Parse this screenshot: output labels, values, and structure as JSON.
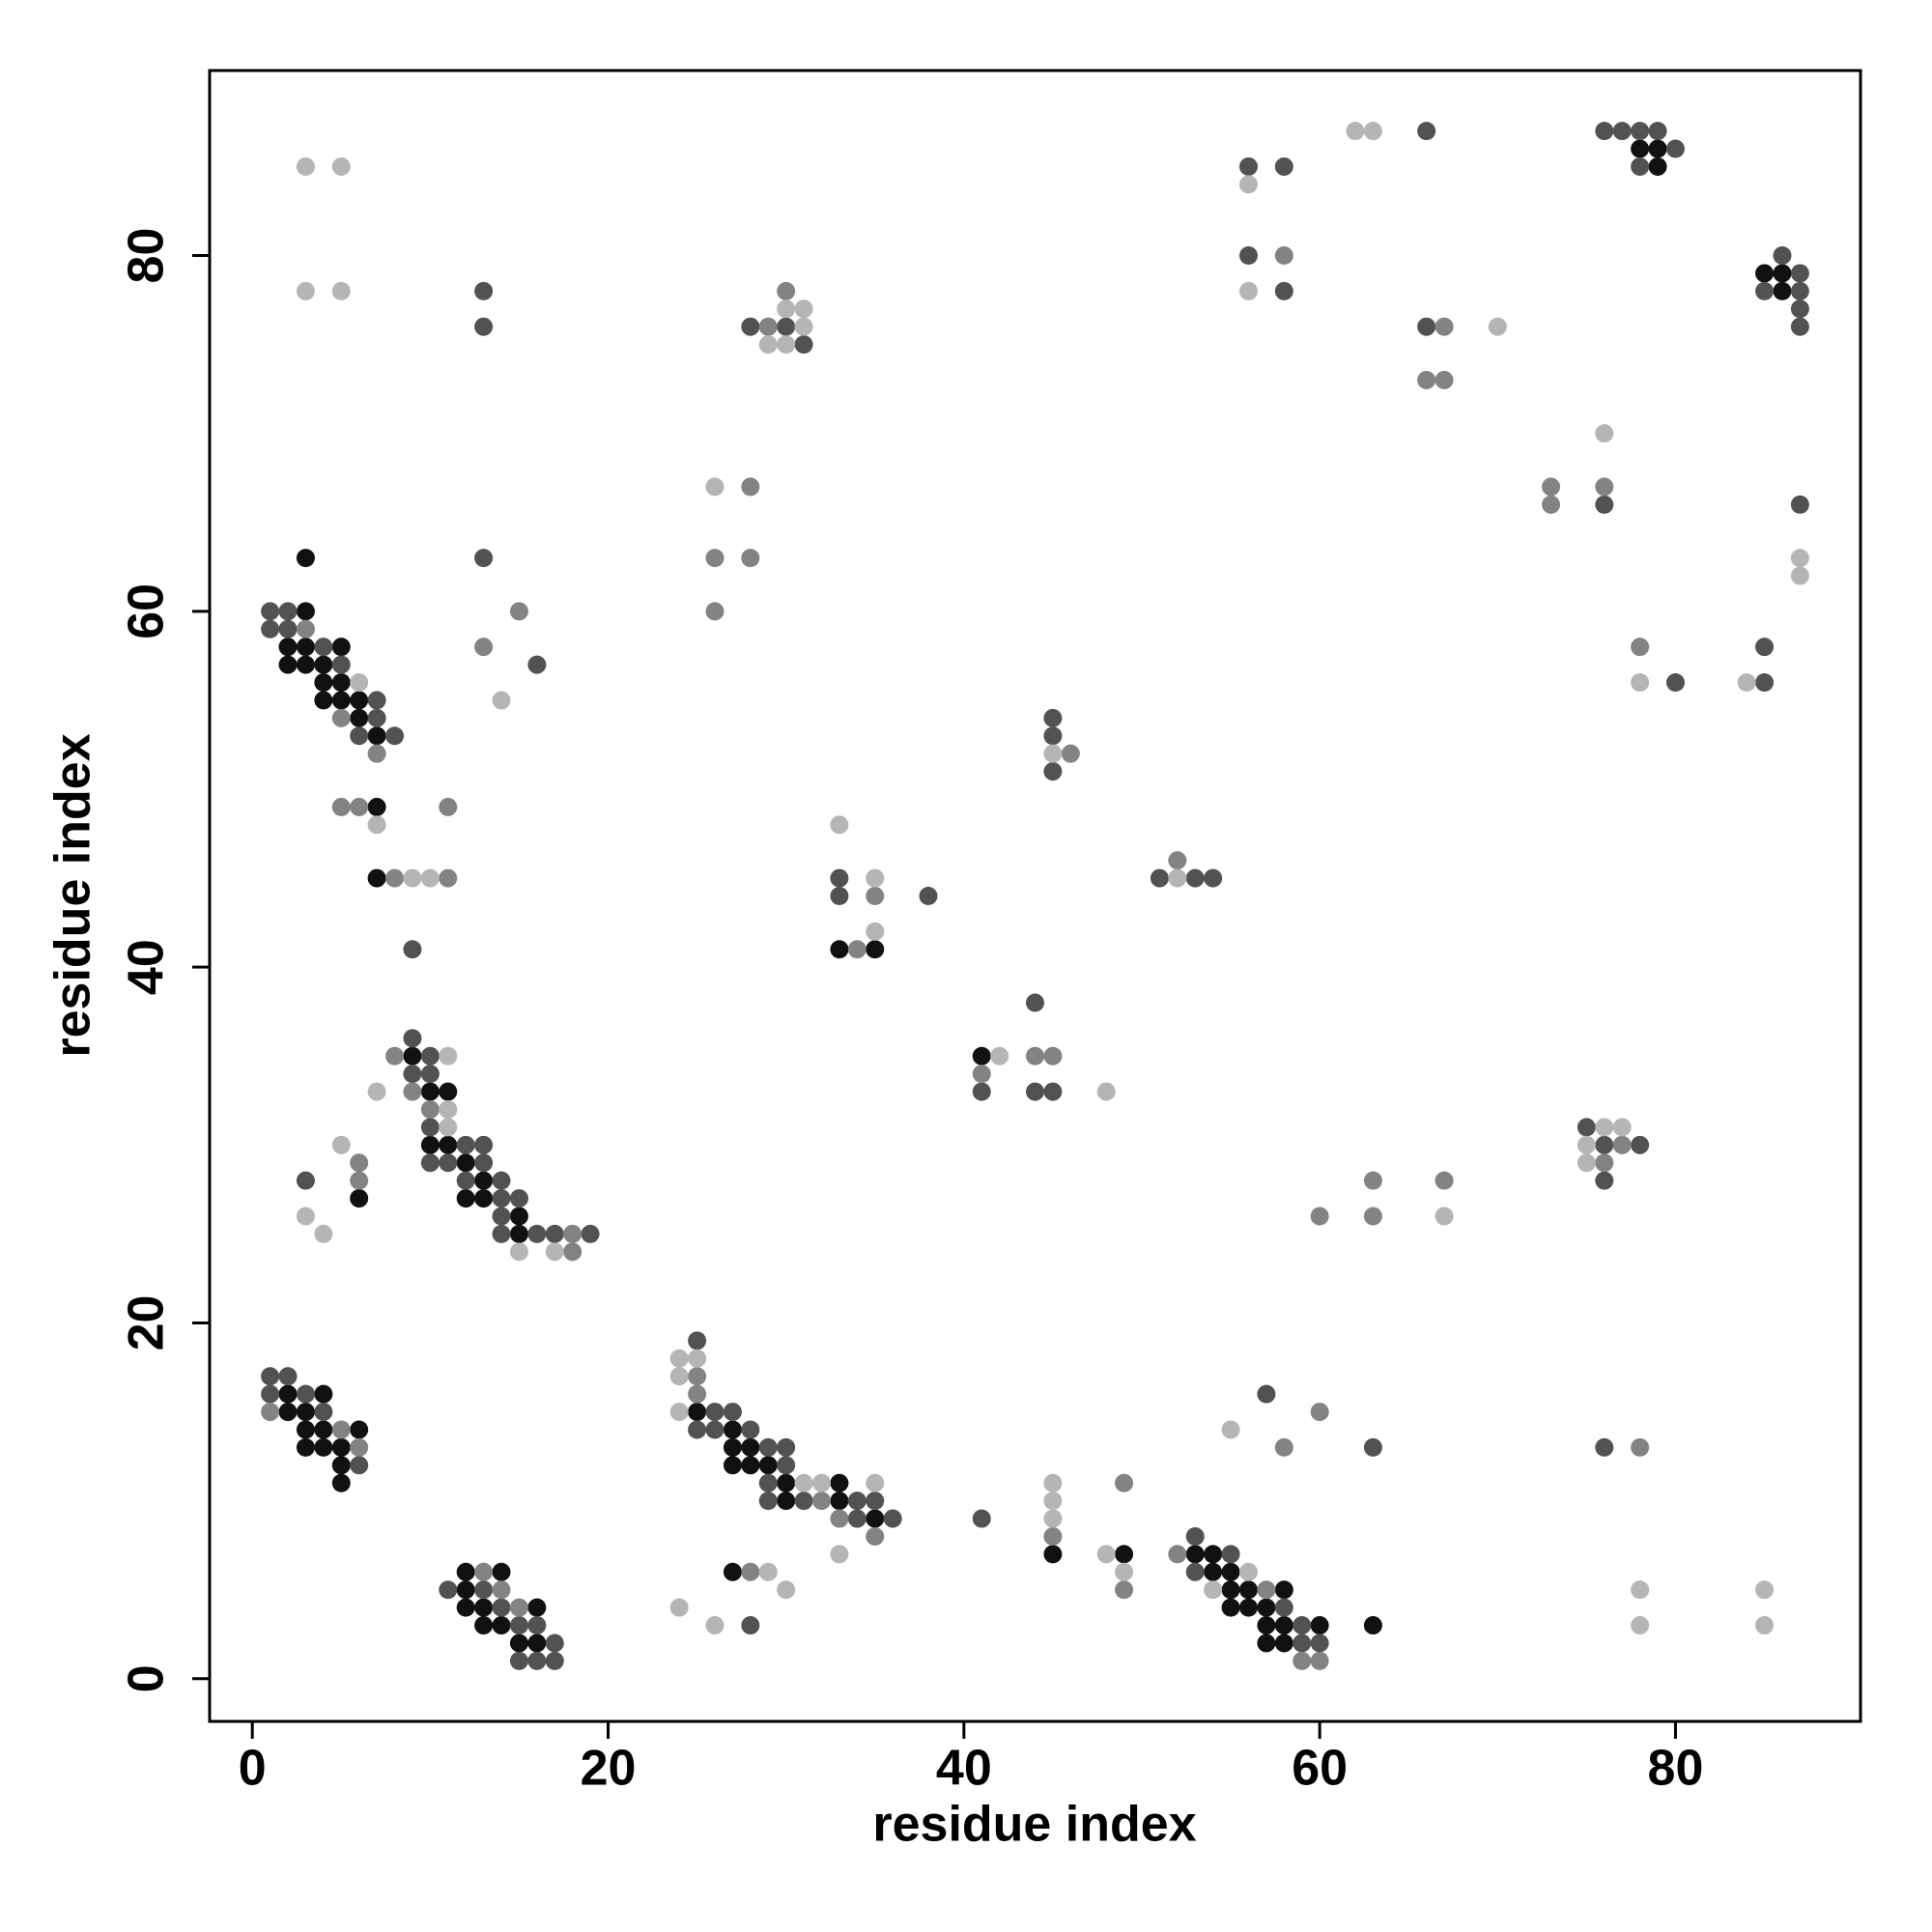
{
  "chart_data": {
    "type": "scatter",
    "xlabel": "residue index",
    "ylabel": "residue index",
    "xlim": [
      -2.4,
      90.4
    ],
    "ylim": [
      -2.4,
      90.4
    ],
    "xticks": [
      0,
      20,
      40,
      60,
      80
    ],
    "yticks": [
      0,
      20,
      40,
      60,
      80
    ],
    "grid": false,
    "series": [
      {
        "color": "#111111",
        "x": [
          78,
          79,
          79,
          85,
          86,
          86,
          3,
          3,
          2,
          3,
          5,
          2,
          3,
          4,
          4,
          5,
          4,
          5,
          6,
          6,
          7,
          7,
          7,
          33,
          35,
          9,
          41,
          10,
          11,
          10,
          11,
          12,
          13,
          6,
          12,
          13,
          15,
          15,
          2,
          4,
          2,
          3,
          25,
          3,
          4,
          6,
          27,
          3,
          4,
          5,
          27,
          28,
          5,
          27,
          28,
          29,
          5,
          30,
          33,
          30,
          33,
          35,
          45,
          49,
          53,
          54,
          12,
          14,
          27,
          54,
          55,
          12,
          55,
          56,
          58,
          12,
          13,
          16,
          55,
          56,
          57,
          13,
          14,
          57,
          58,
          60,
          63,
          15,
          16,
          57,
          58
        ],
        "values": [
          86,
          86,
          85,
          79,
          79,
          78,
          63,
          60,
          58,
          58,
          58,
          57,
          57,
          57,
          56,
          56,
          55,
          55,
          55,
          54,
          53,
          49,
          45,
          41,
          41,
          35,
          35,
          33,
          33,
          30,
          30,
          29,
          28,
          27,
          27,
          27,
          26,
          25,
          16,
          16,
          15,
          15,
          15,
          14,
          14,
          14,
          14,
          13,
          13,
          13,
          13,
          13,
          12,
          12,
          12,
          12,
          11,
          11,
          11,
          10,
          10,
          9,
          7,
          7,
          7,
          7,
          6,
          6,
          6,
          6,
          6,
          5,
          5,
          5,
          5,
          4,
          4,
          4,
          4,
          4,
          4,
          3,
          3,
          3,
          3,
          3,
          3,
          2,
          2,
          2,
          2
        ]
      },
      {
        "color": "#525252",
        "x": [
          66,
          76,
          77,
          78,
          79,
          80,
          56,
          58,
          78,
          56,
          86,
          87,
          13,
          58,
          85,
          87,
          87,
          13,
          28,
          30,
          66,
          87,
          31,
          76,
          87,
          13,
          1,
          2,
          1,
          2,
          4,
          85,
          5,
          16,
          80,
          85,
          7,
          7,
          45,
          6,
          8,
          45,
          45,
          33,
          51,
          53,
          54,
          33,
          38,
          9,
          44,
          9,
          10,
          9,
          10,
          41,
          44,
          45,
          10,
          75,
          12,
          13,
          76,
          78,
          10,
          11,
          13,
          3,
          12,
          14,
          76,
          14,
          15,
          14,
          14,
          16,
          17,
          19,
          25,
          1,
          2,
          1,
          3,
          57,
          4,
          26,
          27,
          25,
          26,
          28,
          29,
          30,
          63,
          76,
          6,
          30,
          29,
          29,
          31,
          34,
          35,
          34,
          36,
          41,
          53,
          55,
          53,
          11,
          13,
          14,
          58,
          15,
          16,
          28,
          59,
          17,
          59,
          60,
          15,
          16,
          17
        ],
        "values": [
          87,
          87,
          87,
          87,
          87,
          86,
          85,
          85,
          85,
          80,
          80,
          79,
          78,
          78,
          78,
          78,
          77,
          76,
          76,
          76,
          76,
          76,
          75,
          66,
          66,
          63,
          60,
          60,
          59,
          59,
          58,
          58,
          57,
          57,
          56,
          56,
          55,
          54,
          54,
          53,
          53,
          53,
          51,
          45,
          45,
          45,
          45,
          44,
          44,
          41,
          38,
          36,
          35,
          34,
          34,
          33,
          33,
          33,
          31,
          31,
          30,
          30,
          30,
          30,
          29,
          29,
          29,
          28,
          28,
          28,
          28,
          27,
          27,
          26,
          25,
          25,
          25,
          25,
          19,
          17,
          17,
          16,
          16,
          16,
          15,
          15,
          15,
          14,
          14,
          14,
          13,
          13,
          13,
          13,
          12,
          12,
          11,
          10,
          10,
          10,
          10,
          9,
          9,
          9,
          8,
          7,
          6,
          5,
          5,
          4,
          4,
          3,
          3,
          3,
          3,
          2,
          2,
          2,
          1,
          1,
          1
        ]
      },
      {
        "color": "#838383",
        "x": [
          58,
          30,
          29,
          67,
          66,
          67,
          28,
          73,
          76,
          73,
          26,
          28,
          15,
          26,
          3,
          13,
          78,
          5,
          7,
          46,
          5,
          6,
          11,
          52,
          8,
          11,
          35,
          34,
          8,
          44,
          45,
          41,
          9,
          10,
          77,
          6,
          76,
          6,
          63,
          67,
          60,
          63,
          18,
          18,
          25,
          25,
          1,
          60,
          5,
          6,
          58,
          78,
          49,
          32,
          33,
          35,
          45,
          52,
          13,
          28,
          14,
          49,
          57,
          15,
          59,
          60
        ],
        "values": [
          80,
          78,
          76,
          76,
          73,
          73,
          67,
          67,
          67,
          66,
          63,
          63,
          60,
          60,
          59,
          58,
          58,
          54,
          52,
          52,
          49,
          49,
          49,
          46,
          45,
          45,
          44,
          41,
          35,
          35,
          35,
          34,
          33,
          32,
          30,
          29,
          29,
          28,
          28,
          28,
          26,
          26,
          25,
          24,
          17,
          16,
          15,
          15,
          14,
          13,
          13,
          13,
          11,
          10,
          9,
          8,
          8,
          7,
          6,
          6,
          5,
          5,
          5,
          4,
          1,
          1
        ]
      },
      {
        "color": "#b5b5b5",
        "x": [
          62,
          63,
          3,
          5,
          56,
          3,
          5,
          56,
          30,
          31,
          31,
          70,
          29,
          30,
          76,
          26,
          87,
          87,
          6,
          78,
          84,
          14,
          45,
          7,
          33,
          9,
          10,
          35,
          52,
          35,
          11,
          42,
          7,
          48,
          11,
          11,
          76,
          77,
          5,
          75,
          75,
          3,
          67,
          4,
          15,
          17,
          24,
          25,
          24,
          24,
          55,
          31,
          32,
          35,
          45,
          45,
          45,
          33,
          48,
          29,
          49,
          56,
          30,
          54,
          78,
          85,
          24,
          26,
          78,
          85
        ],
        "values": [
          87,
          87,
          85,
          85,
          84,
          78,
          78,
          78,
          77,
          77,
          76,
          76,
          75,
          75,
          70,
          67,
          63,
          62,
          56,
          56,
          56,
          55,
          52,
          48,
          48,
          45,
          45,
          45,
          45,
          42,
          35,
          35,
          33,
          33,
          32,
          31,
          31,
          31,
          30,
          30,
          29,
          26,
          26,
          25,
          24,
          24,
          18,
          18,
          17,
          15,
          14,
          11,
          11,
          11,
          11,
          10,
          9,
          7,
          7,
          6,
          6,
          6,
          5,
          5,
          5,
          5,
          4,
          3,
          3,
          3
        ]
      }
    ]
  }
}
